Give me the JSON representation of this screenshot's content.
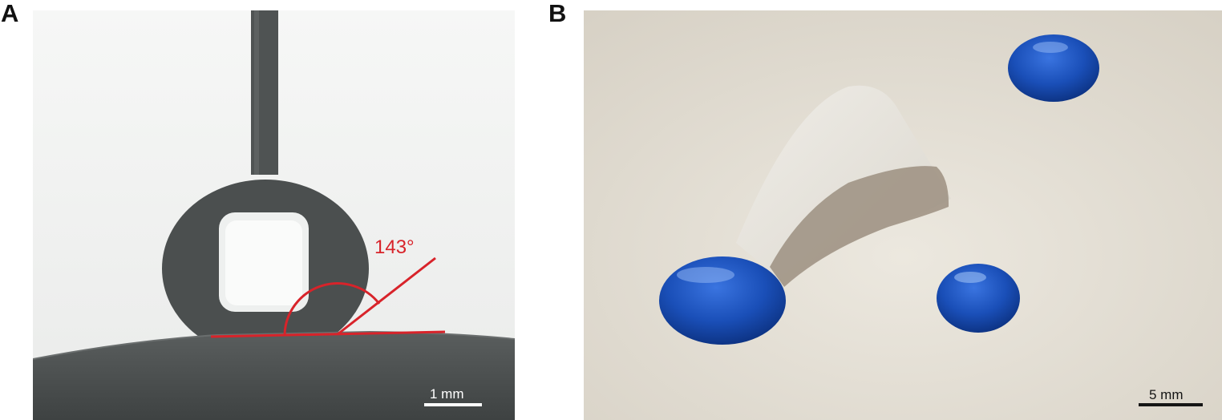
{
  "panels": {
    "a": {
      "letter": "A",
      "angle_label": "143°",
      "scale_label": "1 mm"
    },
    "b": {
      "letter": "B",
      "scale_label": "5 mm"
    }
  },
  "colors": {
    "angle_line": "#d8232a",
    "droplet_blue": "#1b4fb8",
    "substrate_gray": "#4a4d4d",
    "surface_cream": "#e5e0d6"
  }
}
